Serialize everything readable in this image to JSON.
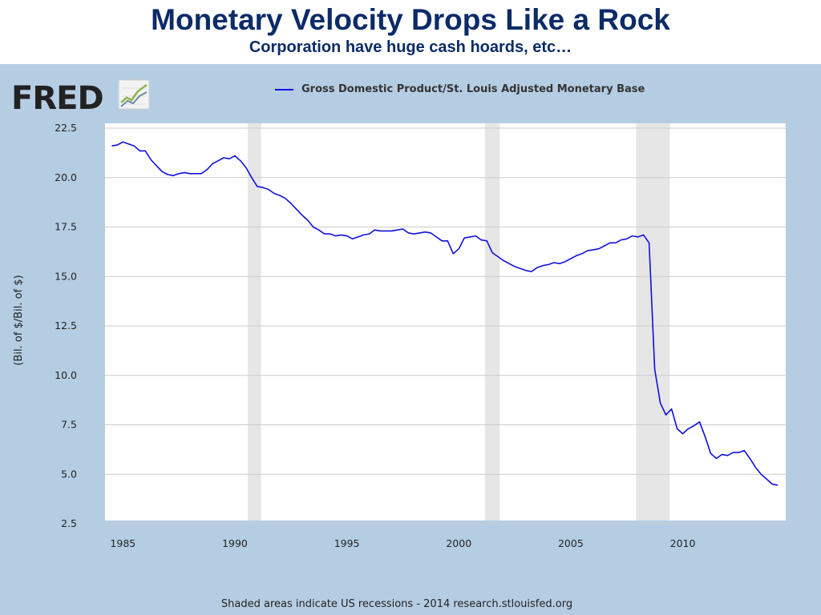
{
  "slide": {
    "title": "Monetary Velocity Drops Like a Rock",
    "subtitle": "Corporation have huge cash hoards, etc…"
  },
  "logo": {
    "text": "FRED",
    "icon": "chart-line-icon"
  },
  "footer": "Shaded areas indicate US recessions - 2014 research.stlouisfed.org",
  "colors": {
    "series": "#1010dd",
    "recession": "#e6e6e6",
    "panel": "#b5cde3",
    "title": "#0c2b68"
  },
  "chart_data": {
    "type": "line",
    "ylabel": "(Bil. of $/Bil. of $)",
    "xlim": [
      1984.2,
      2014.6
    ],
    "ylim": [
      2.5,
      22.5
    ],
    "yticks": [
      "22.5",
      "20.0",
      "17.5",
      "15.0",
      "12.5",
      "10.0",
      "7.5",
      "5.0",
      "2.5"
    ],
    "xticks": [
      "1985",
      "1990",
      "1995",
      "2000",
      "2005",
      "2010"
    ],
    "grid": true,
    "legend_placement": "top",
    "recessions": [
      [
        1990.58,
        1991.17
      ],
      [
        2001.17,
        2001.83
      ],
      [
        2007.92,
        2009.42
      ]
    ],
    "series": [
      {
        "name": "Gross Domestic Product/St. Louis Adjusted Monetary Base",
        "x": [
          1984.5,
          1984.75,
          1985.0,
          1985.25,
          1985.5,
          1985.75,
          1986.0,
          1986.25,
          1986.5,
          1986.75,
          1987.0,
          1987.25,
          1987.5,
          1987.75,
          1988.0,
          1988.25,
          1988.5,
          1988.75,
          1989.0,
          1989.25,
          1989.5,
          1989.75,
          1990.0,
          1990.25,
          1990.5,
          1990.75,
          1991.0,
          1991.25,
          1991.5,
          1991.75,
          1992.0,
          1992.25,
          1992.5,
          1992.75,
          1993.0,
          1993.25,
          1993.5,
          1993.75,
          1994.0,
          1994.25,
          1994.5,
          1994.75,
          1995.0,
          1995.25,
          1995.5,
          1995.75,
          1996.0,
          1996.25,
          1996.5,
          1996.75,
          1997.0,
          1997.25,
          1997.5,
          1997.75,
          1998.0,
          1998.25,
          1998.5,
          1998.75,
          1999.0,
          1999.25,
          1999.5,
          1999.75,
          2000.0,
          2000.25,
          2000.5,
          2000.75,
          2001.0,
          2001.25,
          2001.5,
          2001.75,
          2002.0,
          2002.25,
          2002.5,
          2002.75,
          2003.0,
          2003.25,
          2003.5,
          2003.75,
          2004.0,
          2004.25,
          2004.5,
          2004.75,
          2005.0,
          2005.25,
          2005.5,
          2005.75,
          2006.0,
          2006.25,
          2006.5,
          2006.75,
          2007.0,
          2007.25,
          2007.5,
          2007.75,
          2008.0,
          2008.25,
          2008.5,
          2008.75,
          2009.0,
          2009.25,
          2009.5,
          2009.75,
          2010.0,
          2010.25,
          2010.5,
          2010.75,
          2011.0,
          2011.25,
          2011.5,
          2011.75,
          2012.0,
          2012.25,
          2012.5,
          2012.75,
          2013.0,
          2013.25,
          2013.5,
          2013.75,
          2014.0,
          2014.25
        ],
        "y": [
          21.6,
          21.65,
          21.8,
          21.7,
          21.6,
          21.35,
          21.35,
          20.9,
          20.6,
          20.3,
          20.15,
          20.1,
          20.2,
          20.25,
          20.2,
          20.2,
          20.2,
          20.4,
          20.7,
          20.85,
          21.0,
          20.95,
          21.1,
          20.85,
          20.5,
          20.0,
          19.55,
          19.5,
          19.4,
          19.2,
          19.1,
          18.95,
          18.7,
          18.4,
          18.1,
          17.85,
          17.5,
          17.35,
          17.15,
          17.15,
          17.05,
          17.1,
          17.05,
          16.9,
          17.0,
          17.1,
          17.15,
          17.35,
          17.3,
          17.3,
          17.3,
          17.35,
          17.4,
          17.2,
          17.15,
          17.2,
          17.25,
          17.2,
          17.0,
          16.8,
          16.8,
          16.15,
          16.4,
          16.95,
          17.0,
          17.05,
          16.85,
          16.8,
          16.2,
          16.0,
          15.8,
          15.65,
          15.5,
          15.4,
          15.3,
          15.25,
          15.45,
          15.55,
          15.6,
          15.7,
          15.65,
          15.75,
          15.9,
          16.05,
          16.15,
          16.3,
          16.35,
          16.4,
          16.55,
          16.7,
          16.7,
          16.85,
          16.9,
          17.05,
          17.0,
          17.1,
          16.7,
          10.3,
          8.6,
          8.0,
          8.3,
          7.3,
          7.05,
          7.3,
          7.45,
          7.65,
          6.9,
          6.05,
          5.8,
          6.0,
          5.95,
          6.1,
          6.1,
          6.2,
          5.8,
          5.35,
          5.0,
          4.75,
          4.5,
          4.45
        ]
      }
    ]
  }
}
